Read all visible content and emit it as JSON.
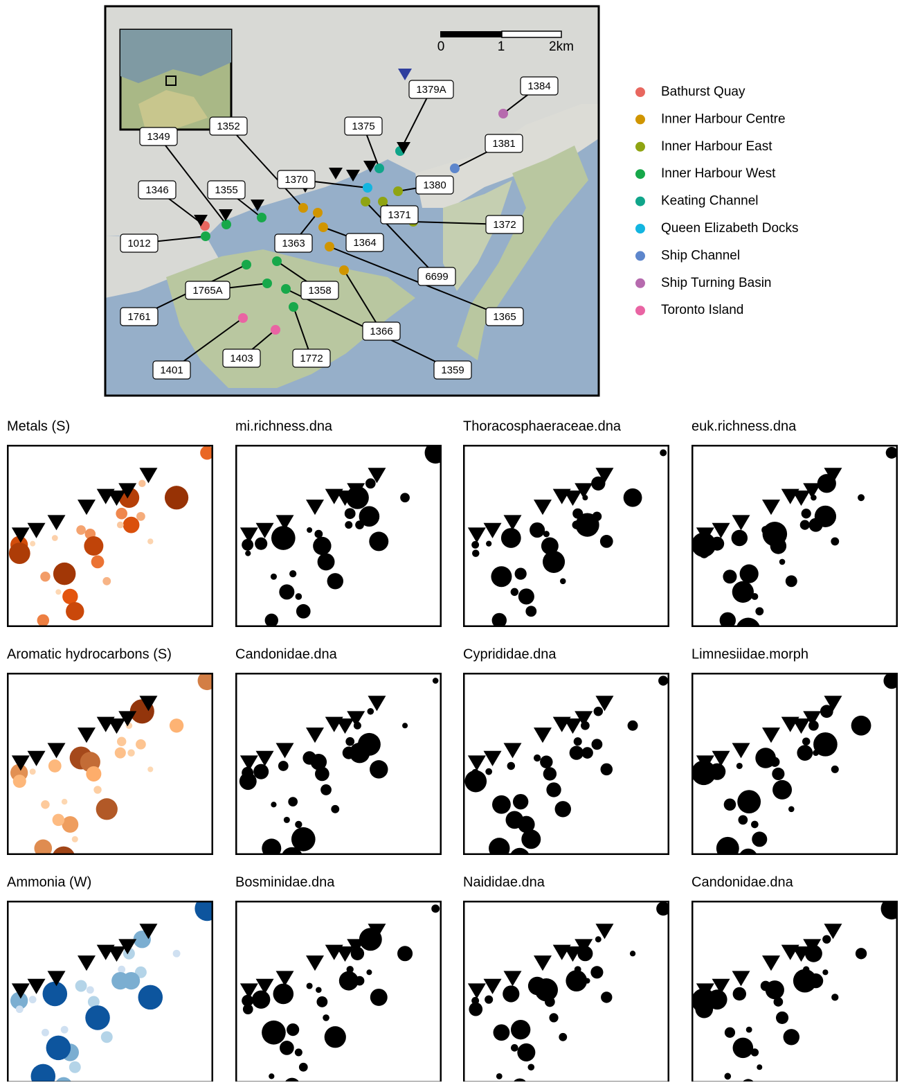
{
  "scale_bar": {
    "labels": [
      "0",
      "1",
      "2km"
    ]
  },
  "stations": [
    "1349",
    "1352",
    "1346",
    "1355",
    "1370",
    "1375",
    "1379A",
    "1384",
    "1381",
    "1380",
    "1371",
    "1372",
    "1363",
    "1364",
    "6699",
    "1365",
    "1358",
    "1366",
    "1359",
    "1765A",
    "1761",
    "1772",
    "1403",
    "1401",
    "1012"
  ],
  "legend": [
    {
      "name": "Bathurst Quay",
      "color": "#e8675f"
    },
    {
      "name": "Inner Harbour Centre",
      "color": "#d09500"
    },
    {
      "name": "Inner Harbour East",
      "color": "#8fa412"
    },
    {
      "name": "Inner Harbour West",
      "color": "#17a84a"
    },
    {
      "name": "Keating Channel",
      "color": "#10a58a"
    },
    {
      "name": "Queen Elizabeth Docks",
      "color": "#13b5e0"
    },
    {
      "name": "Ship Channel",
      "color": "#5d86cc"
    },
    {
      "name": "Ship Turning Basin",
      "color": "#b66aae"
    },
    {
      "name": "Toronto Island",
      "color": "#e964a3"
    }
  ],
  "panels": [
    "Metals (S)",
    "mi.richness.dna",
    "Thoracosphaeraceae.dna",
    "euk.richness.dna",
    "Aromatic hydrocarbons (S)",
    "Candonidae.dna",
    "Cyprididae.dna",
    "Limnesiidae.morph",
    "Ammonia (W)",
    "Bosminidae.dna",
    "Naididae.dna",
    "Candonidae.dna"
  ]
}
